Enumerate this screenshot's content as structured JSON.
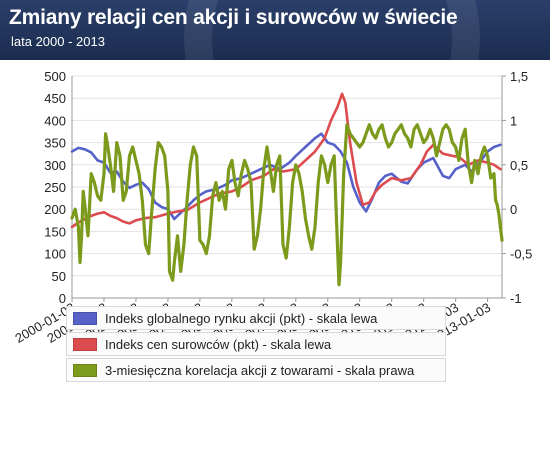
{
  "header": {
    "title": "Zmiany relacji cen akcji i surowców w świecie",
    "subtitle": "lata 2000 - 2013"
  },
  "colors": {
    "header_bg": "#22355c",
    "series_blue": "#5661c9",
    "series_red": "#dc4b4e",
    "series_green": "#7c9a1c",
    "grid": "#e2e2e2"
  },
  "chart_data": {
    "type": "line",
    "title": "Zmiany relacji cen akcji i surowców w świecie",
    "subtitle": "lata 2000 - 2013",
    "x_ticks": [
      "2000-01-03",
      "2001-01-03",
      "2002-01-03",
      "2003-01-03",
      "2004-01-03",
      "2005-01-03",
      "2006-01-03",
      "2007-01-03",
      "2008-01-03",
      "2009-01-03",
      "2010-01-03",
      "2011-01-03",
      "2012-01-03",
      "2013-01-03"
    ],
    "x_range": [
      2000.0,
      2013.45
    ],
    "y_left": {
      "range": [
        0,
        500
      ],
      "ticks": [
        "0",
        "50",
        "100",
        "150",
        "200",
        "250",
        "300",
        "350",
        "400",
        "450",
        "500"
      ]
    },
    "y_right": {
      "range": [
        -1,
        1.5
      ],
      "ticks": [
        "-1",
        "-0,5",
        "0",
        "0,5",
        "1",
        "1,5"
      ]
    },
    "grid": true,
    "legend_position": "bottom",
    "series": [
      {
        "name": "Indeks globalnego rynku akcji (pkt) - skala lewa",
        "axis": "left",
        "color": "#5661c9",
        "points": [
          [
            2000.0,
            330
          ],
          [
            2000.2,
            338
          ],
          [
            2000.4,
            335
          ],
          [
            2000.6,
            328
          ],
          [
            2000.8,
            310
          ],
          [
            2001.0,
            305
          ],
          [
            2001.2,
            282
          ],
          [
            2001.4,
            285
          ],
          [
            2001.6,
            262
          ],
          [
            2001.8,
            248
          ],
          [
            2002.0,
            255
          ],
          [
            2002.2,
            260
          ],
          [
            2002.4,
            245
          ],
          [
            2002.6,
            215
          ],
          [
            2002.8,
            205
          ],
          [
            2003.0,
            200
          ],
          [
            2003.2,
            178
          ],
          [
            2003.4,
            192
          ],
          [
            2003.6,
            205
          ],
          [
            2003.8,
            220
          ],
          [
            2004.0,
            232
          ],
          [
            2004.2,
            240
          ],
          [
            2004.5,
            245
          ],
          [
            2004.8,
            255
          ],
          [
            2005.0,
            265
          ],
          [
            2005.3,
            270
          ],
          [
            2005.6,
            280
          ],
          [
            2005.9,
            290
          ],
          [
            2006.2,
            300
          ],
          [
            2006.5,
            290
          ],
          [
            2006.8,
            305
          ],
          [
            2007.0,
            320
          ],
          [
            2007.3,
            340
          ],
          [
            2007.6,
            360
          ],
          [
            2007.8,
            370
          ],
          [
            2008.0,
            350
          ],
          [
            2008.2,
            345
          ],
          [
            2008.4,
            330
          ],
          [
            2008.6,
            305
          ],
          [
            2008.8,
            250
          ],
          [
            2009.0,
            215
          ],
          [
            2009.2,
            195
          ],
          [
            2009.4,
            225
          ],
          [
            2009.6,
            260
          ],
          [
            2009.8,
            275
          ],
          [
            2010.0,
            280
          ],
          [
            2010.3,
            262
          ],
          [
            2010.5,
            258
          ],
          [
            2010.8,
            290
          ],
          [
            2011.0,
            305
          ],
          [
            2011.3,
            315
          ],
          [
            2011.6,
            275
          ],
          [
            2011.8,
            270
          ],
          [
            2012.0,
            290
          ],
          [
            2012.3,
            300
          ],
          [
            2012.5,
            285
          ],
          [
            2012.8,
            310
          ],
          [
            2013.0,
            330
          ],
          [
            2013.2,
            340
          ],
          [
            2013.4,
            345
          ]
        ]
      },
      {
        "name": "Indeks cen surowców (pkt) - skala lewa",
        "axis": "left",
        "color": "#dc4b4e",
        "points": [
          [
            2000.0,
            160
          ],
          [
            2000.2,
            170
          ],
          [
            2000.4,
            178
          ],
          [
            2000.6,
            185
          ],
          [
            2000.8,
            190
          ],
          [
            2001.0,
            193
          ],
          [
            2001.2,
            185
          ],
          [
            2001.4,
            180
          ],
          [
            2001.6,
            172
          ],
          [
            2001.8,
            168
          ],
          [
            2002.0,
            175
          ],
          [
            2002.3,
            180
          ],
          [
            2002.6,
            182
          ],
          [
            2003.0,
            190
          ],
          [
            2003.3,
            195
          ],
          [
            2003.6,
            198
          ],
          [
            2004.0,
            215
          ],
          [
            2004.3,
            225
          ],
          [
            2004.6,
            235
          ],
          [
            2005.0,
            240
          ],
          [
            2005.3,
            250
          ],
          [
            2005.6,
            265
          ],
          [
            2006.0,
            275
          ],
          [
            2006.3,
            290
          ],
          [
            2006.6,
            285
          ],
          [
            2007.0,
            290
          ],
          [
            2007.3,
            310
          ],
          [
            2007.6,
            330
          ],
          [
            2007.9,
            360
          ],
          [
            2008.1,
            400
          ],
          [
            2008.3,
            430
          ],
          [
            2008.45,
            460
          ],
          [
            2008.55,
            440
          ],
          [
            2008.7,
            350
          ],
          [
            2008.9,
            260
          ],
          [
            2009.1,
            210
          ],
          [
            2009.3,
            215
          ],
          [
            2009.5,
            240
          ],
          [
            2009.7,
            255
          ],
          [
            2010.0,
            270
          ],
          [
            2010.3,
            265
          ],
          [
            2010.6,
            270
          ],
          [
            2010.9,
            300
          ],
          [
            2011.1,
            330
          ],
          [
            2011.3,
            345
          ],
          [
            2011.6,
            325
          ],
          [
            2011.9,
            320
          ],
          [
            2012.1,
            318
          ],
          [
            2012.4,
            300
          ],
          [
            2012.7,
            310
          ],
          [
            2013.0,
            305
          ],
          [
            2013.2,
            300
          ],
          [
            2013.4,
            290
          ]
        ]
      },
      {
        "name": "3-miesięczna korelacja akcji z towarami - skala prawa",
        "axis": "right",
        "color": "#7c9a1c",
        "points": [
          [
            2000.0,
            -0.1
          ],
          [
            2000.1,
            0.0
          ],
          [
            2000.2,
            -0.2
          ],
          [
            2000.25,
            -0.6
          ],
          [
            2000.3,
            -0.3
          ],
          [
            2000.35,
            0.2
          ],
          [
            2000.4,
            0.05
          ],
          [
            2000.5,
            -0.3
          ],
          [
            2000.6,
            0.4
          ],
          [
            2000.7,
            0.3
          ],
          [
            2000.8,
            0.15
          ],
          [
            2000.9,
            0.1
          ],
          [
            2001.0,
            0.4
          ],
          [
            2001.05,
            0.85
          ],
          [
            2001.1,
            0.75
          ],
          [
            2001.2,
            0.5
          ],
          [
            2001.3,
            0.2
          ],
          [
            2001.4,
            0.75
          ],
          [
            2001.5,
            0.6
          ],
          [
            2001.6,
            0.1
          ],
          [
            2001.7,
            0.2
          ],
          [
            2001.8,
            0.6
          ],
          [
            2001.9,
            0.7
          ],
          [
            2002.0,
            0.55
          ],
          [
            2002.1,
            0.4
          ],
          [
            2002.2,
            0.1
          ],
          [
            2002.3,
            -0.4
          ],
          [
            2002.4,
            -0.5
          ],
          [
            2002.5,
            0.0
          ],
          [
            2002.6,
            0.45
          ],
          [
            2002.7,
            0.75
          ],
          [
            2002.8,
            0.7
          ],
          [
            2002.9,
            0.6
          ],
          [
            2003.0,
            0.2
          ],
          [
            2003.05,
            -0.7
          ],
          [
            2003.15,
            -0.8
          ],
          [
            2003.2,
            -0.6
          ],
          [
            2003.3,
            -0.3
          ],
          [
            2003.4,
            -0.7
          ],
          [
            2003.5,
            -0.4
          ],
          [
            2003.6,
            0.1
          ],
          [
            2003.7,
            0.5
          ],
          [
            2003.8,
            0.7
          ],
          [
            2003.9,
            0.6
          ],
          [
            2004.0,
            -0.35
          ],
          [
            2004.1,
            -0.4
          ],
          [
            2004.2,
            -0.5
          ],
          [
            2004.3,
            -0.3
          ],
          [
            2004.4,
            0.15
          ],
          [
            2004.5,
            0.3
          ],
          [
            2004.6,
            0.1
          ],
          [
            2004.7,
            0.2
          ],
          [
            2004.8,
            0.0
          ],
          [
            2004.9,
            0.45
          ],
          [
            2005.0,
            0.55
          ],
          [
            2005.1,
            0.3
          ],
          [
            2005.2,
            0.15
          ],
          [
            2005.3,
            0.4
          ],
          [
            2005.4,
            0.55
          ],
          [
            2005.5,
            0.45
          ],
          [
            2005.6,
            0.3
          ],
          [
            2005.7,
            -0.45
          ],
          [
            2005.8,
            -0.3
          ],
          [
            2005.9,
            0.0
          ],
          [
            2006.0,
            0.45
          ],
          [
            2006.1,
            0.7
          ],
          [
            2006.2,
            0.45
          ],
          [
            2006.3,
            0.2
          ],
          [
            2006.4,
            0.5
          ],
          [
            2006.5,
            0.6
          ],
          [
            2006.6,
            -0.4
          ],
          [
            2006.7,
            -0.55
          ],
          [
            2006.8,
            -0.2
          ],
          [
            2006.9,
            0.3
          ],
          [
            2007.0,
            0.5
          ],
          [
            2007.1,
            0.4
          ],
          [
            2007.2,
            0.2
          ],
          [
            2007.3,
            -0.1
          ],
          [
            2007.4,
            -0.3
          ],
          [
            2007.5,
            -0.45
          ],
          [
            2007.6,
            -0.2
          ],
          [
            2007.7,
            0.3
          ],
          [
            2007.8,
            0.6
          ],
          [
            2007.9,
            0.5
          ],
          [
            2008.0,
            0.3
          ],
          [
            2008.1,
            0.5
          ],
          [
            2008.2,
            0.6
          ],
          [
            2008.3,
            -0.4
          ],
          [
            2008.35,
            -0.85
          ],
          [
            2008.4,
            -0.6
          ],
          [
            2008.5,
            0.4
          ],
          [
            2008.6,
            0.95
          ],
          [
            2008.7,
            0.85
          ],
          [
            2008.8,
            0.8
          ],
          [
            2008.9,
            0.75
          ],
          [
            2009.0,
            0.7
          ],
          [
            2009.1,
            0.75
          ],
          [
            2009.2,
            0.85
          ],
          [
            2009.3,
            0.95
          ],
          [
            2009.4,
            0.85
          ],
          [
            2009.5,
            0.8
          ],
          [
            2009.6,
            0.9
          ],
          [
            2009.7,
            0.95
          ],
          [
            2009.8,
            0.8
          ],
          [
            2009.9,
            0.7
          ],
          [
            2010.0,
            0.75
          ],
          [
            2010.1,
            0.85
          ],
          [
            2010.2,
            0.9
          ],
          [
            2010.3,
            0.95
          ],
          [
            2010.4,
            0.85
          ],
          [
            2010.5,
            0.8
          ],
          [
            2010.6,
            0.7
          ],
          [
            2010.7,
            0.9
          ],
          [
            2010.8,
            0.95
          ],
          [
            2010.9,
            0.85
          ],
          [
            2011.0,
            0.75
          ],
          [
            2011.1,
            0.8
          ],
          [
            2011.2,
            0.9
          ],
          [
            2011.3,
            0.8
          ],
          [
            2011.4,
            0.6
          ],
          [
            2011.5,
            0.75
          ],
          [
            2011.6,
            0.9
          ],
          [
            2011.7,
            0.95
          ],
          [
            2011.8,
            0.9
          ],
          [
            2011.9,
            0.75
          ],
          [
            2012.0,
            0.7
          ],
          [
            2012.1,
            0.55
          ],
          [
            2012.2,
            0.8
          ],
          [
            2012.3,
            0.9
          ],
          [
            2012.4,
            0.5
          ],
          [
            2012.5,
            0.3
          ],
          [
            2012.6,
            0.55
          ],
          [
            2012.7,
            0.4
          ],
          [
            2012.8,
            0.6
          ],
          [
            2012.9,
            0.7
          ],
          [
            2013.0,
            0.6
          ],
          [
            2013.1,
            0.35
          ],
          [
            2013.2,
            0.4
          ],
          [
            2013.25,
            0.1
          ],
          [
            2013.3,
            0.05
          ],
          [
            2013.35,
            -0.05
          ],
          [
            2013.4,
            -0.2
          ],
          [
            2013.45,
            -0.35
          ]
        ]
      }
    ]
  }
}
